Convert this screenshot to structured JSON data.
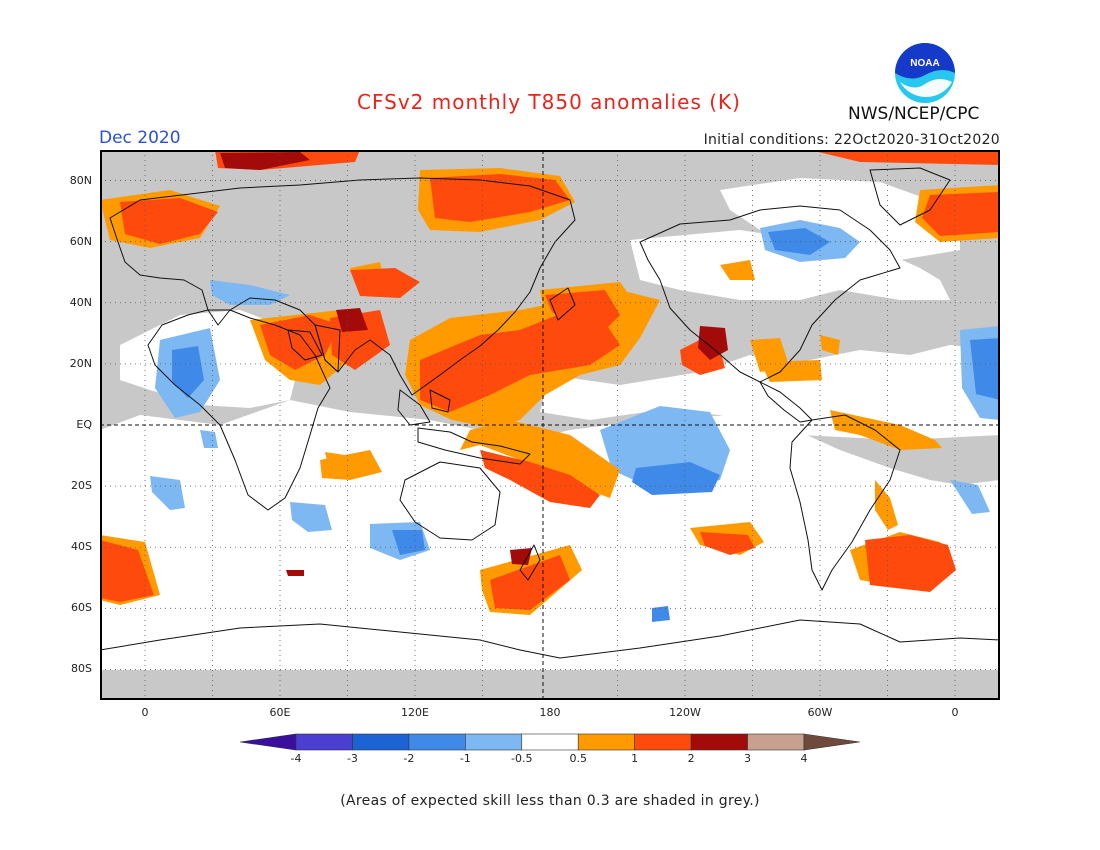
{
  "title": "CFSv2 monthly T850 anomalies (K)",
  "valid_month": "Dec 2020",
  "initial_conditions": "Initial conditions: 22Oct2020-31Oct2020",
  "agency": "NWS/NCEP/CPC",
  "logo_text": "NOAA",
  "footnote": "(Areas of expected skill less than 0.3 are shaded in grey.)",
  "map": {
    "projection": "cylindrical-equidistant",
    "central_longitude": 180,
    "lon_range": [
      -20,
      380
    ],
    "lat_range": [
      -90,
      90
    ],
    "lat_labels": [
      {
        "lat": 80,
        "text": "80N"
      },
      {
        "lat": 60,
        "text": "60N"
      },
      {
        "lat": 40,
        "text": "40N"
      },
      {
        "lat": 20,
        "text": "20N"
      },
      {
        "lat": 0,
        "text": "EQ"
      },
      {
        "lat": -20,
        "text": "20S"
      },
      {
        "lat": -40,
        "text": "40S"
      },
      {
        "lat": -60,
        "text": "60S"
      },
      {
        "lat": -80,
        "text": "80S"
      }
    ],
    "lon_labels": [
      {
        "lon": 0,
        "text": "0"
      },
      {
        "lon": 60,
        "text": "60E"
      },
      {
        "lon": 120,
        "text": "120E"
      },
      {
        "lon": 180,
        "text": "180"
      },
      {
        "lon": 240,
        "text": "120W"
      },
      {
        "lon": 300,
        "text": "60W"
      },
      {
        "lon": 360,
        "text": "0"
      }
    ],
    "grid": "dotted every 30 degrees; dashed equator and dateline",
    "skill_mask_color": "#c8c8c8"
  },
  "colorbar": {
    "labels": [
      "-4",
      "-3",
      "-2",
      "-1",
      "-0.5",
      "0.5",
      "1",
      "2",
      "3",
      "4"
    ],
    "colors": [
      "#3a0f9e",
      "#4b3fd1",
      "#1c64d4",
      "#3f8ae8",
      "#7eb8f2",
      "#ffffff",
      "#ff9a00",
      "#ff4a0e",
      "#a30a0a",
      "#c8a090",
      "#6f4a3c"
    ]
  }
}
